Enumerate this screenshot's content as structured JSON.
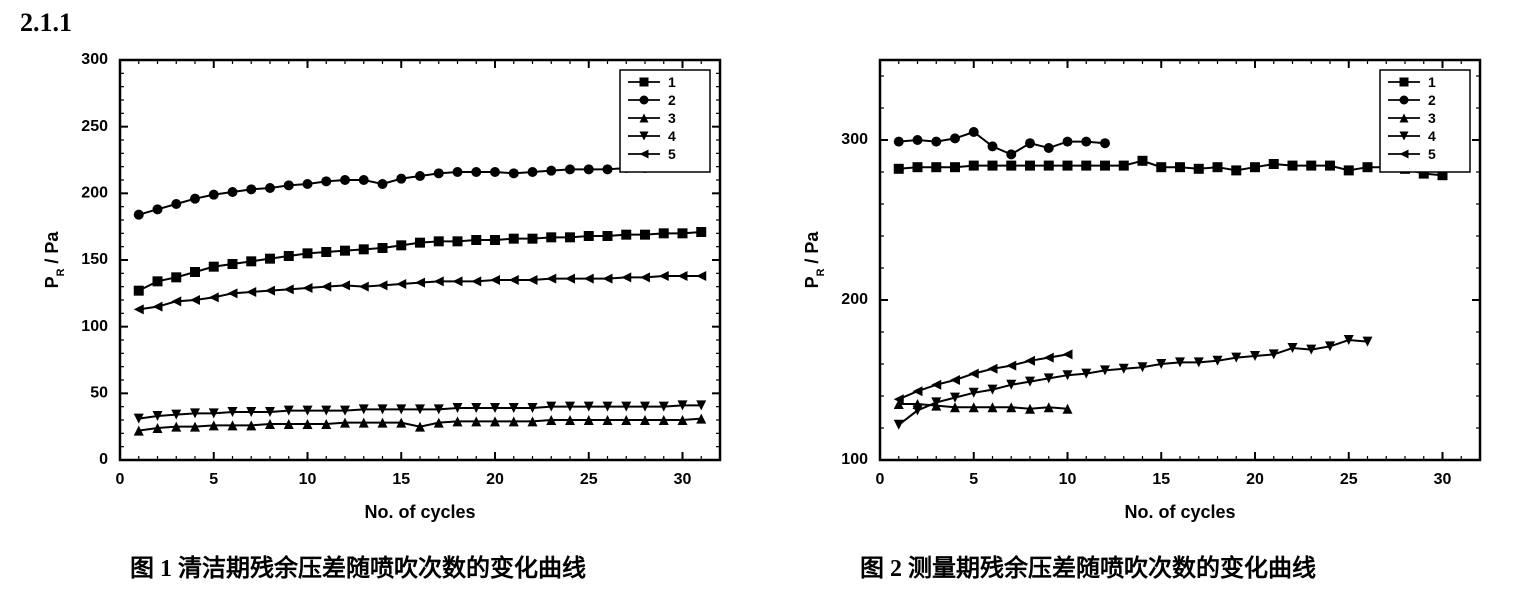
{
  "corner_text": "2.1.1",
  "charts": [
    {
      "id": "left",
      "type": "line+marker",
      "caption": "图 1 清洁期残余压差随喷吹次数的变化曲线",
      "xlabel": "No. of cycles",
      "ylabel": "P_R / Pa",
      "label_fontsize": 18,
      "tick_fontsize": 16,
      "xlim": [
        0,
        32
      ],
      "ylim": [
        0,
        300
      ],
      "xticks": [
        0,
        5,
        10,
        15,
        20,
        25,
        30
      ],
      "yticks": [
        0,
        50,
        100,
        150,
        200,
        250,
        300
      ],
      "minor_x_step": 1,
      "minor_y_step": 10,
      "background_color": "#ffffff",
      "axis_color": "#000000",
      "line_width": 2,
      "marker_size": 5,
      "legend": {
        "position": "top-right",
        "labels": [
          "1",
          "2",
          "3",
          "4",
          "5"
        ]
      },
      "series": [
        {
          "name": "1",
          "marker": "square",
          "color": "#000000",
          "x": [
            1,
            2,
            3,
            4,
            5,
            6,
            7,
            8,
            9,
            10,
            11,
            12,
            13,
            14,
            15,
            16,
            17,
            18,
            19,
            20,
            21,
            22,
            23,
            24,
            25,
            26,
            27,
            28,
            29,
            30,
            31
          ],
          "y": [
            127,
            134,
            137,
            141,
            145,
            147,
            149,
            151,
            153,
            155,
            156,
            157,
            158,
            159,
            161,
            163,
            164,
            164,
            165,
            165,
            166,
            166,
            167,
            167,
            168,
            168,
            169,
            169,
            170,
            170,
            171
          ]
        },
        {
          "name": "2",
          "marker": "circle",
          "color": "#000000",
          "x": [
            1,
            2,
            3,
            4,
            5,
            6,
            7,
            8,
            9,
            10,
            11,
            12,
            13,
            14,
            15,
            16,
            17,
            18,
            19,
            20,
            21,
            22,
            23,
            24,
            25,
            26,
            27,
            28,
            29,
            30,
            31
          ],
          "y": [
            184,
            188,
            192,
            196,
            199,
            201,
            203,
            204,
            206,
            207,
            209,
            210,
            210,
            207,
            211,
            213,
            215,
            216,
            216,
            216,
            215,
            216,
            217,
            218,
            218,
            218,
            219,
            219,
            220,
            220,
            222
          ]
        },
        {
          "name": "3",
          "marker": "triangle-up",
          "color": "#000000",
          "x": [
            1,
            2,
            3,
            4,
            5,
            6,
            7,
            8,
            9,
            10,
            11,
            12,
            13,
            14,
            15,
            16,
            17,
            18,
            19,
            20,
            21,
            22,
            23,
            24,
            25,
            26,
            27,
            28,
            29,
            30,
            31
          ],
          "y": [
            22,
            24,
            25,
            25,
            26,
            26,
            26,
            27,
            27,
            27,
            27,
            28,
            28,
            28,
            28,
            25,
            28,
            29,
            29,
            29,
            29,
            29,
            30,
            30,
            30,
            30,
            30,
            30,
            30,
            30,
            31
          ]
        },
        {
          "name": "4",
          "marker": "triangle-down",
          "color": "#000000",
          "x": [
            1,
            2,
            3,
            4,
            5,
            6,
            7,
            8,
            9,
            10,
            11,
            12,
            13,
            14,
            15,
            16,
            17,
            18,
            19,
            20,
            21,
            22,
            23,
            24,
            25,
            26,
            27,
            28,
            29,
            30,
            31
          ],
          "y": [
            31,
            33,
            34,
            35,
            35,
            36,
            36,
            36,
            37,
            37,
            37,
            37,
            38,
            38,
            38,
            38,
            38,
            39,
            39,
            39,
            39,
            39,
            40,
            40,
            40,
            40,
            40,
            40,
            40,
            41,
            41
          ]
        },
        {
          "name": "5",
          "marker": "triangle-left",
          "color": "#000000",
          "x": [
            1,
            2,
            3,
            4,
            5,
            6,
            7,
            8,
            9,
            10,
            11,
            12,
            13,
            14,
            15,
            16,
            17,
            18,
            19,
            20,
            21,
            22,
            23,
            24,
            25,
            26,
            27,
            28,
            29,
            30,
            31
          ],
          "y": [
            113,
            115,
            119,
            120,
            122,
            125,
            126,
            127,
            128,
            129,
            130,
            131,
            130,
            131,
            132,
            133,
            134,
            134,
            134,
            135,
            135,
            135,
            136,
            136,
            136,
            136,
            137,
            137,
            138,
            138,
            138
          ]
        }
      ]
    },
    {
      "id": "right",
      "type": "line+marker",
      "caption": "图 2 测量期残余压差随喷吹次数的变化曲线",
      "xlabel": "No. of cycles",
      "ylabel": "P_R / Pa",
      "label_fontsize": 18,
      "tick_fontsize": 16,
      "xlim": [
        0,
        32
      ],
      "ylim": [
        100,
        350
      ],
      "xticks": [
        0,
        5,
        10,
        15,
        20,
        25,
        30
      ],
      "yticks": [
        100,
        200,
        300
      ],
      "minor_x_step": 1,
      "minor_y_step": 20,
      "background_color": "#ffffff",
      "axis_color": "#000000",
      "line_width": 2,
      "marker_size": 5,
      "legend": {
        "position": "top-right",
        "labels": [
          "1",
          "2",
          "3",
          "4",
          "5"
        ]
      },
      "series": [
        {
          "name": "1",
          "marker": "square",
          "color": "#000000",
          "x": [
            1,
            2,
            3,
            4,
            5,
            6,
            7,
            8,
            9,
            10,
            11,
            12,
            13,
            14,
            15,
            16,
            17,
            18,
            19,
            20,
            21,
            22,
            23,
            24,
            25,
            26,
            27,
            28,
            29,
            30
          ],
          "y": [
            282,
            283,
            283,
            283,
            284,
            284,
            284,
            284,
            284,
            284,
            284,
            284,
            284,
            287,
            283,
            283,
            282,
            283,
            281,
            283,
            285,
            284,
            284,
            284,
            281,
            283,
            283,
            282,
            279,
            278
          ]
        },
        {
          "name": "2",
          "marker": "circle",
          "color": "#000000",
          "x": [
            1,
            2,
            3,
            4,
            5,
            6,
            7,
            8,
            9,
            10,
            11,
            12
          ],
          "y": [
            299,
            300,
            299,
            301,
            305,
            296,
            291,
            298,
            295,
            299,
            299,
            298
          ]
        },
        {
          "name": "3",
          "marker": "triangle-up",
          "color": "#000000",
          "x": [
            1,
            2,
            3,
            4,
            5,
            6,
            7,
            8,
            9,
            10
          ],
          "y": [
            135,
            135,
            134,
            133,
            133,
            133,
            133,
            132,
            133,
            132
          ]
        },
        {
          "name": "4",
          "marker": "triangle-down",
          "color": "#000000",
          "x": [
            1,
            2,
            3,
            4,
            5,
            6,
            7,
            8,
            9,
            10,
            11,
            12,
            13,
            14,
            15,
            16,
            17,
            18,
            19,
            20,
            21,
            22,
            23,
            24,
            25,
            26
          ],
          "y": [
            122,
            131,
            136,
            139,
            142,
            144,
            147,
            149,
            151,
            153,
            154,
            156,
            157,
            158,
            160,
            161,
            161,
            162,
            164,
            165,
            166,
            170,
            169,
            171,
            175,
            174
          ]
        },
        {
          "name": "5",
          "marker": "triangle-left",
          "color": "#000000",
          "x": [
            1,
            2,
            3,
            4,
            5,
            6,
            7,
            8,
            9,
            10
          ],
          "y": [
            138,
            143,
            147,
            150,
            154,
            157,
            159,
            162,
            164,
            166
          ]
        }
      ]
    }
  ]
}
